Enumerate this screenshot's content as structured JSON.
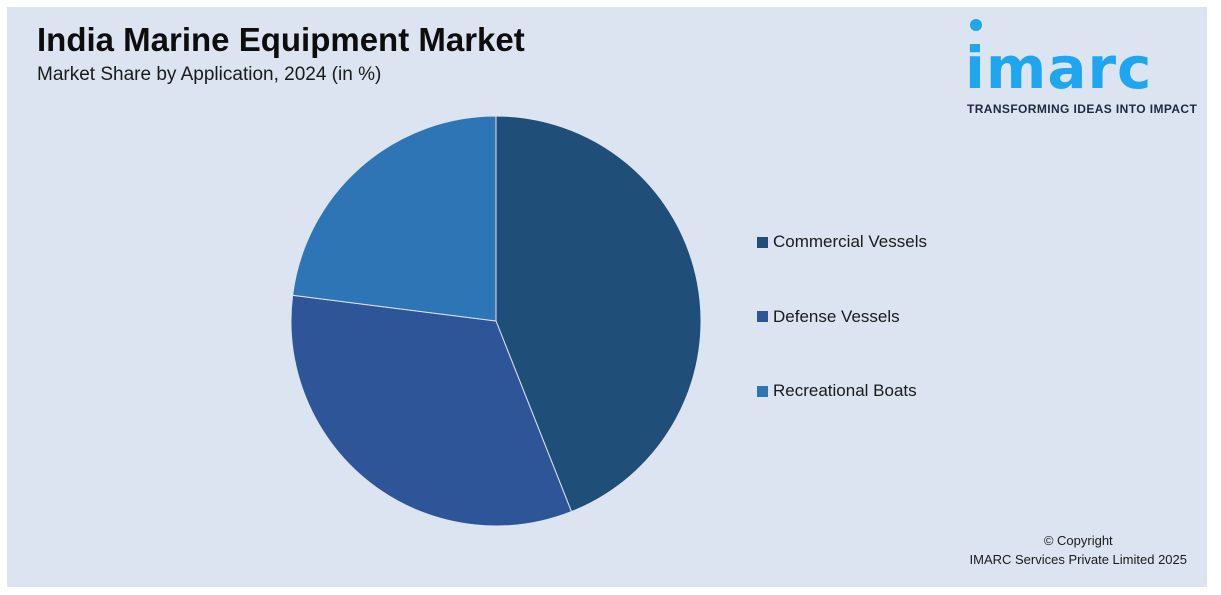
{
  "header": {
    "title": "India Marine Equipment Market",
    "subtitle": "Market Share by Application, 2024 (in %)"
  },
  "logo": {
    "word": "imarc",
    "tagline": "TRANSFORMING IDEAS INTO IMPACT",
    "color": "#1ea7f0"
  },
  "chart_data": {
    "type": "pie",
    "title": "India Marine Equipment Market",
    "subtitle": "Market Share by Application, 2024 (in %)",
    "categories": [
      "Commercial Vessels",
      "Defense Vessels",
      "Recreational Boats"
    ],
    "values": [
      44,
      33,
      23
    ],
    "colors": [
      "#1f4e79",
      "#2e5597",
      "#2e75b6"
    ],
    "start_angle_deg": 0,
    "direction": "clockwise",
    "legend_position": "right"
  },
  "footer": {
    "copyright_line1": "© Copyright",
    "copyright_line2": "IMARC Services Private Limited 2025"
  }
}
